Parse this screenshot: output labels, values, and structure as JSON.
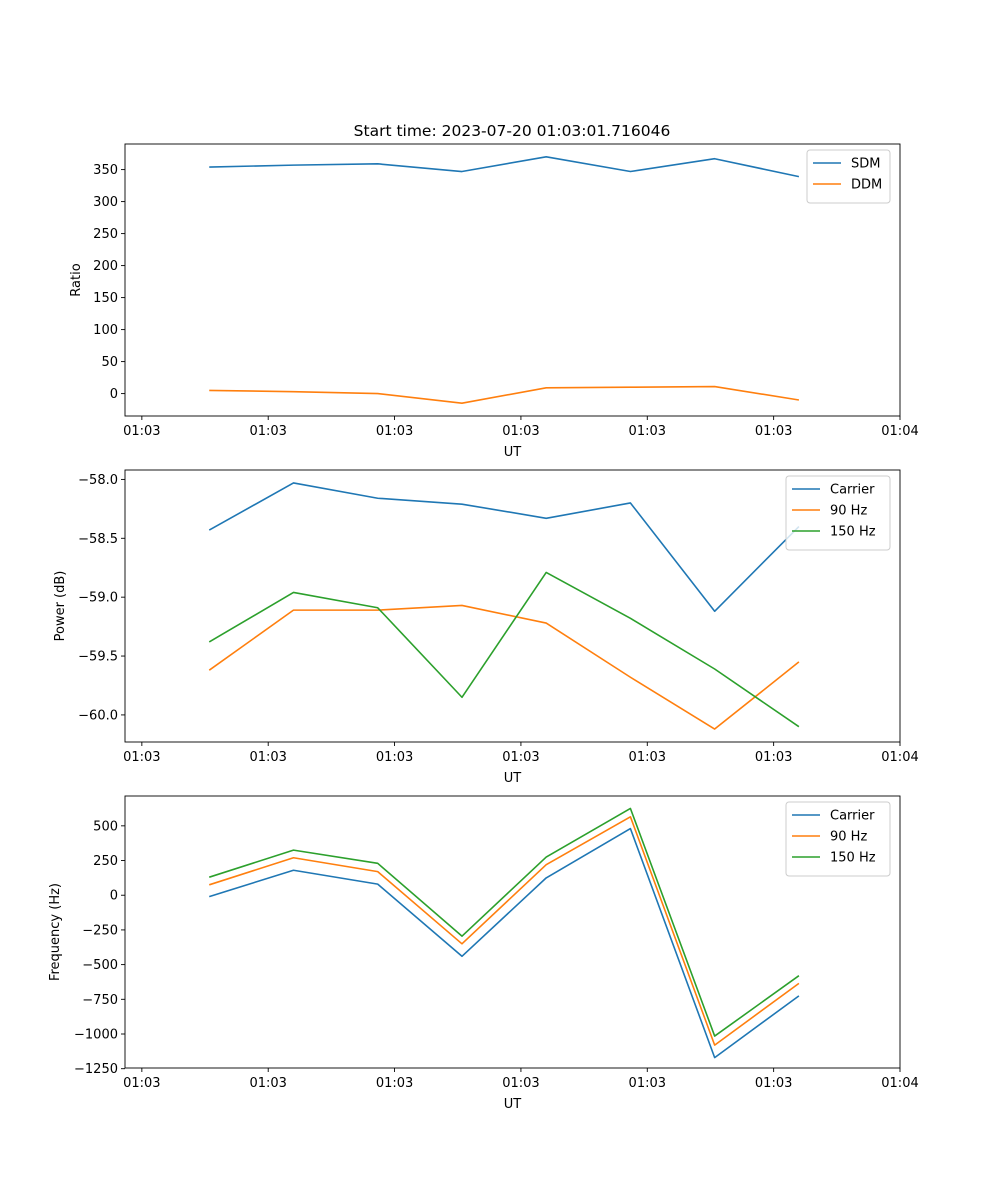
{
  "title": "Start time: 2023-07-20 01:03:01.716046",
  "chart_data": [
    {
      "type": "line",
      "xlabel": "UT",
      "ylabel": "Ratio",
      "xlim": [
        -0.2,
        9.0
      ],
      "ylim": [
        -35,
        390
      ],
      "x": [
        0.8,
        1.8,
        2.8,
        3.8,
        4.8,
        5.8,
        6.8,
        7.8
      ],
      "xticks": [
        0,
        1.5,
        3.0,
        4.5,
        6.0,
        7.5,
        9.0
      ],
      "xtick_labels": [
        "01:03",
        "01:03",
        "01:03",
        "01:03",
        "01:03",
        "01:03",
        "01:04"
      ],
      "yticks": [
        0,
        50,
        100,
        150,
        200,
        250,
        300,
        350
      ],
      "ytick_labels": [
        "0",
        "50",
        "100",
        "150",
        "200",
        "250",
        "300",
        "350"
      ],
      "legend_position": "top-right",
      "series": [
        {
          "name": "SDM",
          "color": "#1f77b4",
          "values": [
            354,
            357,
            359,
            347,
            370,
            347,
            367,
            339
          ]
        },
        {
          "name": "DDM",
          "color": "#ff7f0e",
          "values": [
            5,
            3,
            0,
            -15,
            9,
            10,
            11,
            -10
          ]
        }
      ]
    },
    {
      "type": "line",
      "xlabel": "UT",
      "ylabel": "Power (dB)",
      "xlim": [
        -0.2,
        9.0
      ],
      "ylim": [
        -60.23,
        -57.92
      ],
      "x": [
        0.8,
        1.8,
        2.8,
        3.8,
        4.8,
        5.8,
        6.8,
        7.8
      ],
      "xticks": [
        0,
        1.5,
        3.0,
        4.5,
        6.0,
        7.5,
        9.0
      ],
      "xtick_labels": [
        "01:03",
        "01:03",
        "01:03",
        "01:03",
        "01:03",
        "01:03",
        "01:04"
      ],
      "yticks": [
        -60.0,
        -59.5,
        -59.0,
        -58.5,
        -58.0
      ],
      "ytick_labels": [
        "−60.0",
        "−59.5",
        "−59.0",
        "−58.5",
        "−58.0"
      ],
      "legend_position": "top-right",
      "series": [
        {
          "name": "Carrier",
          "color": "#1f77b4",
          "values": [
            -58.43,
            -58.03,
            -58.16,
            -58.21,
            -58.33,
            -58.2,
            -59.12,
            -58.4
          ]
        },
        {
          "name": "90 Hz",
          "color": "#ff7f0e",
          "values": [
            -59.62,
            -59.11,
            -59.11,
            -59.07,
            -59.22,
            -59.68,
            -60.12,
            -59.55
          ]
        },
        {
          "name": "150 Hz",
          "color": "#2ca02c",
          "values": [
            -59.38,
            -58.96,
            -59.09,
            -59.85,
            -58.79,
            -59.18,
            -59.61,
            -60.1
          ]
        }
      ]
    },
    {
      "type": "line",
      "xlabel": "UT",
      "ylabel": "Frequency (Hz)",
      "xlim": [
        -0.2,
        9.0
      ],
      "ylim": [
        -1245,
        715
      ],
      "x": [
        0.8,
        1.8,
        2.8,
        3.8,
        4.8,
        5.8,
        6.8,
        7.8
      ],
      "xticks": [
        0,
        1.5,
        3.0,
        4.5,
        6.0,
        7.5,
        9.0
      ],
      "xtick_labels": [
        "01:03",
        "01:03",
        "01:03",
        "01:03",
        "01:03",
        "01:03",
        "01:04"
      ],
      "yticks": [
        -1250,
        -1000,
        -750,
        -500,
        -250,
        0,
        250,
        500
      ],
      "ytick_labels": [
        "−1250",
        "−1000",
        "−750",
        "−500",
        "−250",
        "0",
        "250",
        "500"
      ],
      "legend_position": "top-right",
      "series": [
        {
          "name": "Carrier",
          "color": "#1f77b4",
          "values": [
            -10,
            180,
            80,
            -440,
            125,
            480,
            -1170,
            -725
          ]
        },
        {
          "name": "90 Hz",
          "color": "#ff7f0e",
          "values": [
            75,
            270,
            170,
            -350,
            220,
            565,
            -1080,
            -635
          ]
        },
        {
          "name": "150 Hz",
          "color": "#2ca02c",
          "values": [
            130,
            325,
            230,
            -295,
            275,
            625,
            -1015,
            -580
          ]
        }
      ]
    }
  ]
}
